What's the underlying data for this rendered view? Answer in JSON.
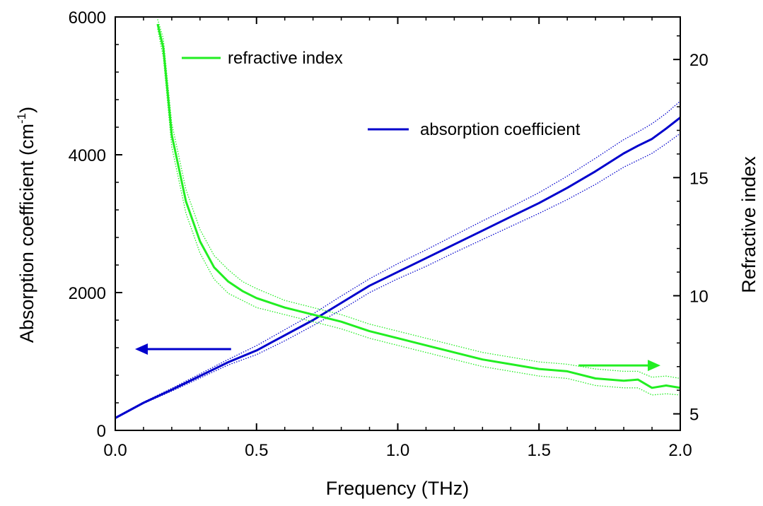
{
  "chart_data": {
    "type": "line",
    "title": "",
    "xlabel": "Frequency (THz)",
    "ylabel_left": "Absorption coefficient (cm-1)",
    "ylabel_left_base": "Absorption coefficient (cm",
    "ylabel_left_sup": "-1",
    "ylabel_left_close": ")",
    "ylabel_right": "Refractive index",
    "xlim": [
      0.0,
      2.0
    ],
    "ylim_left": [
      0,
      6000
    ],
    "ylim_right": [
      4.3,
      21.8
    ],
    "x_ticks": [
      "0.0",
      "0.5",
      "1.0",
      "1.5",
      "2.0"
    ],
    "x_tick_values": [
      0.0,
      0.5,
      1.0,
      1.5,
      2.0
    ],
    "y_left_ticks": [
      "0",
      "2000",
      "4000",
      "6000"
    ],
    "y_left_tick_values": [
      0,
      2000,
      4000,
      6000
    ],
    "y_right_ticks": [
      "5",
      "10",
      "15",
      "20"
    ],
    "y_right_tick_values": [
      5,
      10,
      15,
      20
    ],
    "grid": false,
    "colors": {
      "absorption": "#0000cc",
      "refractive": "#22ee22"
    },
    "legend": [
      {
        "label": "refractive index",
        "color": "#22ee22"
      },
      {
        "label": "absorption coefficient",
        "color": "#0000cc"
      }
    ],
    "series": [
      {
        "name": "absorption coefficient",
        "axis": "left",
        "x": [
          0.0,
          0.1,
          0.2,
          0.3,
          0.4,
          0.5,
          0.6,
          0.7,
          0.8,
          0.9,
          1.0,
          1.1,
          1.2,
          1.3,
          1.4,
          1.5,
          1.6,
          1.7,
          1.8,
          1.85,
          1.9,
          1.95,
          2.0
        ],
        "y": [
          180,
          400,
          590,
          790,
          990,
          1160,
          1380,
          1600,
          1850,
          2100,
          2300,
          2500,
          2700,
          2900,
          3100,
          3300,
          3520,
          3760,
          4020,
          4130,
          4230,
          4380,
          4540
        ],
        "band_upper": [
          190,
          410,
          610,
          820,
          1030,
          1230,
          1460,
          1690,
          1950,
          2200,
          2420,
          2620,
          2830,
          3040,
          3240,
          3450,
          3690,
          3950,
          4220,
          4330,
          4450,
          4600,
          4780
        ],
        "band_lower": [
          170,
          390,
          570,
          760,
          950,
          1100,
          1300,
          1520,
          1750,
          2000,
          2200,
          2380,
          2580,
          2770,
          2960,
          3150,
          3350,
          3570,
          3820,
          3920,
          4020,
          4160,
          4310
        ]
      },
      {
        "name": "refractive index",
        "axis": "right",
        "x": [
          0.15,
          0.17,
          0.2,
          0.25,
          0.3,
          0.35,
          0.4,
          0.45,
          0.5,
          0.6,
          0.7,
          0.8,
          0.9,
          1.0,
          1.1,
          1.2,
          1.3,
          1.4,
          1.5,
          1.6,
          1.7,
          1.8,
          1.85,
          1.9,
          1.95,
          2.0
        ],
        "y": [
          21.5,
          20.5,
          16.8,
          14.0,
          12.3,
          11.2,
          10.6,
          10.2,
          9.9,
          9.5,
          9.2,
          8.9,
          8.5,
          8.2,
          7.9,
          7.6,
          7.3,
          7.1,
          6.9,
          6.8,
          6.5,
          6.4,
          6.45,
          6.1,
          6.2,
          6.1
        ],
        "band_upper": [
          21.7,
          20.9,
          17.3,
          14.5,
          12.8,
          11.7,
          11.1,
          10.6,
          10.3,
          9.8,
          9.5,
          9.2,
          8.8,
          8.5,
          8.2,
          7.9,
          7.6,
          7.4,
          7.2,
          7.1,
          6.9,
          6.8,
          6.8,
          6.55,
          6.6,
          6.5
        ],
        "band_lower": [
          21.3,
          20.1,
          16.3,
          13.5,
          11.8,
          10.7,
          10.1,
          9.8,
          9.5,
          9.2,
          8.9,
          8.6,
          8.2,
          7.9,
          7.6,
          7.3,
          7.0,
          6.8,
          6.6,
          6.5,
          6.2,
          6.1,
          6.1,
          5.8,
          5.85,
          5.8
        ]
      }
    ],
    "annotations": [
      {
        "name": "left-arrow",
        "points_to": "left",
        "color": "#0000cc",
        "x_from": 0.41,
        "x_to": 0.07,
        "y": 1180,
        "axis": "left"
      },
      {
        "name": "right-arrow",
        "points_to": "right",
        "color": "#22ee22",
        "x_from": 1.64,
        "x_to": 1.93,
        "y": 7.05,
        "axis": "right"
      }
    ]
  }
}
